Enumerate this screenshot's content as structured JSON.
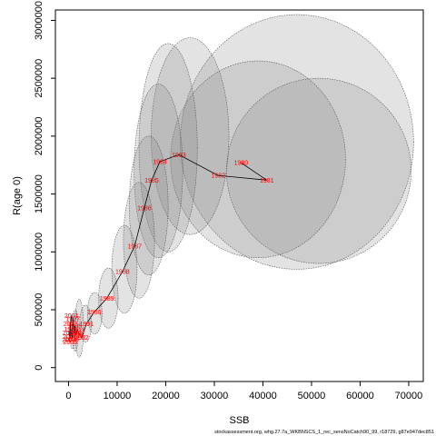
{
  "chart_data": {
    "type": "scatter",
    "title": "",
    "xlabel": "SSB",
    "ylabel": "R(age 0)",
    "xlim": [
      -2700,
      73000
    ],
    "ylim": [
      -120000,
      3090000
    ],
    "x_ticks": [
      0,
      10000,
      20000,
      30000,
      40000,
      50000,
      60000,
      70000
    ],
    "x_tick_labels": [
      "0",
      "10000",
      "20000",
      "30000",
      "40000",
      "50000",
      "60000",
      "70000"
    ],
    "y_ticks": [
      0,
      500000,
      1000000,
      1500000,
      2000000,
      2500000,
      3000000
    ],
    "y_tick_labels": [
      "0",
      "500000",
      "1000000",
      "1500000",
      "2000000",
      "2500000",
      "3000000"
    ],
    "grid": false,
    "legend": "none",
    "colors": {
      "points": "#ff0000",
      "path": "#000000",
      "ellipse_fill": "#808080",
      "ellipse_edge": "#555555"
    },
    "series": [
      {
        "values": [
          {
            "label": "1980",
            "x": 35500,
            "y": 1770000
          },
          {
            "label": "1981",
            "x": 40800,
            "y": 1620000
          },
          {
            "label": "1982",
            "x": 30800,
            "y": 1660000
          },
          {
            "label": "1983",
            "x": 22700,
            "y": 1840000
          },
          {
            "label": "1984",
            "x": 18800,
            "y": 1780000
          },
          {
            "label": "1985",
            "x": 17100,
            "y": 1620000
          },
          {
            "label": "1986",
            "x": 15600,
            "y": 1380000
          },
          {
            "label": "1987",
            "x": 13600,
            "y": 1050000
          },
          {
            "label": "1988",
            "x": 11100,
            "y": 830000
          },
          {
            "label": "1989",
            "x": 7900,
            "y": 600000
          },
          {
            "label": "1990",
            "x": 5300,
            "y": 480000
          },
          {
            "label": "1991",
            "x": 3700,
            "y": 380000
          },
          {
            "label": "1992",
            "x": 2700,
            "y": 260000
          },
          {
            "label": "1993",
            "x": 1800,
            "y": 320000
          },
          {
            "label": "1994",
            "x": 1500,
            "y": 280000
          },
          {
            "label": "1995",
            "x": 1300,
            "y": 360000
          },
          {
            "label": "1996",
            "x": 1100,
            "y": 300000
          },
          {
            "label": "1997",
            "x": 900,
            "y": 420000
          },
          {
            "label": "1998",
            "x": 700,
            "y": 250000
          },
          {
            "label": "1999",
            "x": 500,
            "y": 330000
          },
          {
            "label": "2000",
            "x": 300,
            "y": 270000
          },
          {
            "label": "2001",
            "x": 600,
            "y": 450000
          },
          {
            "label": "2002",
            "x": 400,
            "y": 380000
          },
          {
            "label": "2003",
            "x": 200,
            "y": 300000
          },
          {
            "label": "2004",
            "x": 100,
            "y": 240000
          },
          {
            "label": "2005",
            "x": 350,
            "y": 220000
          }
        ]
      }
    ],
    "uncertainty_ellipses": [
      {
        "label": "1980",
        "cx": 47000,
        "cy": 1950000,
        "rx": 24000,
        "ry": 1100000
      },
      {
        "label": "1981",
        "cx": 51500,
        "cy": 1700000,
        "rx": 19000,
        "ry": 800000
      },
      {
        "label": "1982",
        "cx": 39000,
        "cy": 1800000,
        "rx": 18000,
        "ry": 850000
      },
      {
        "label": "1983",
        "cx": 25000,
        "cy": 2000000,
        "rx": 8000,
        "ry": 850000
      },
      {
        "label": "1984",
        "cx": 20500,
        "cy": 1900000,
        "rx": 6000,
        "ry": 900000
      },
      {
        "label": "1985",
        "cx": 18500,
        "cy": 1700000,
        "rx": 5000,
        "ry": 750000
      },
      {
        "label": "1986",
        "cx": 16500,
        "cy": 1400000,
        "rx": 4000,
        "ry": 600000
      },
      {
        "label": "1987",
        "cx": 14500,
        "cy": 1100000,
        "rx": 3200,
        "ry": 500000
      },
      {
        "label": "1988",
        "cx": 11500,
        "cy": 850000,
        "rx": 2600,
        "ry": 380000
      },
      {
        "label": "1989",
        "cx": 8200,
        "cy": 600000,
        "rx": 2000,
        "ry": 260000
      },
      {
        "label": "1990",
        "cx": 5400,
        "cy": 470000,
        "rx": 1500,
        "ry": 180000
      },
      {
        "label": "1991",
        "cx": 3500,
        "cy": 380000,
        "rx": 1200,
        "ry": 160000
      },
      {
        "label": "1992",
        "cx": 2200,
        "cy": 340000,
        "rx": 900,
        "ry": 250000
      },
      {
        "label": "1993",
        "cx": 1400,
        "cy": 320000,
        "rx": 600,
        "ry": 180000
      },
      {
        "label": "1994",
        "cx": 800,
        "cy": 300000,
        "rx": 500,
        "ry": 140000
      }
    ],
    "caption": "stockassessment.org, whg.27.7a_WKBNSCS_1_rec_sensNoCatch90_99, r18729, g87e947dec851"
  }
}
